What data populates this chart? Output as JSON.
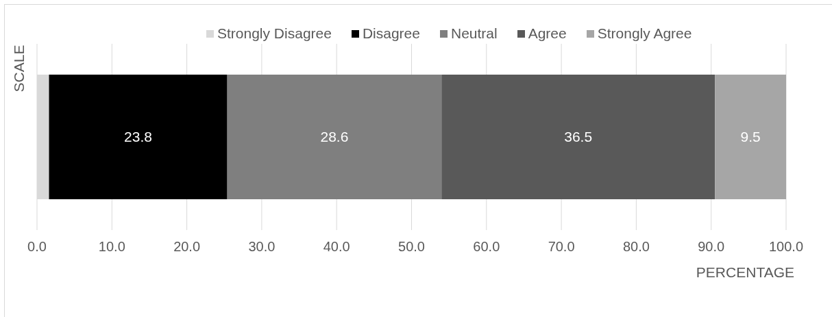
{
  "chart_data": {
    "type": "bar",
    "orientation": "horizontal",
    "stacked": true,
    "categories": [
      null
    ],
    "series": [
      {
        "name": "Strongly Disagree",
        "color": "#d9d9d9",
        "values": [
          1.6
        ],
        "value_labels": [
          null
        ]
      },
      {
        "name": "Disagree",
        "color": "#000000",
        "values": [
          23.8
        ],
        "value_labels": [
          "23.8"
        ]
      },
      {
        "name": "Neutral",
        "color": "#7f7f7f",
        "values": [
          28.6
        ],
        "value_labels": [
          "28.6"
        ]
      },
      {
        "name": "Agree",
        "color": "#595959",
        "values": [
          36.5
        ],
        "value_labels": [
          "36.5"
        ]
      },
      {
        "name": "Strongly Agree",
        "color": "#a6a6a6",
        "values": [
          9.5
        ],
        "value_labels": [
          "9.5"
        ]
      }
    ],
    "xlim": [
      0,
      100
    ],
    "xticks": [
      {
        "value": 0,
        "label": "0.0"
      },
      {
        "value": 10,
        "label": "10.0"
      },
      {
        "value": 20,
        "label": "20.0"
      },
      {
        "value": 30,
        "label": "30.0"
      },
      {
        "value": 40,
        "label": "40.0"
      },
      {
        "value": 50,
        "label": "50.0"
      },
      {
        "value": 60,
        "label": "60.0"
      },
      {
        "value": 70,
        "label": "70.0"
      },
      {
        "value": 80,
        "label": "80.0"
      },
      {
        "value": 90,
        "label": "90.0"
      },
      {
        "value": 100,
        "label": "100.0"
      }
    ],
    "xlabel": "PERCENTAGE",
    "ylabel": "SCALE",
    "grid": "x",
    "legend": "top"
  }
}
